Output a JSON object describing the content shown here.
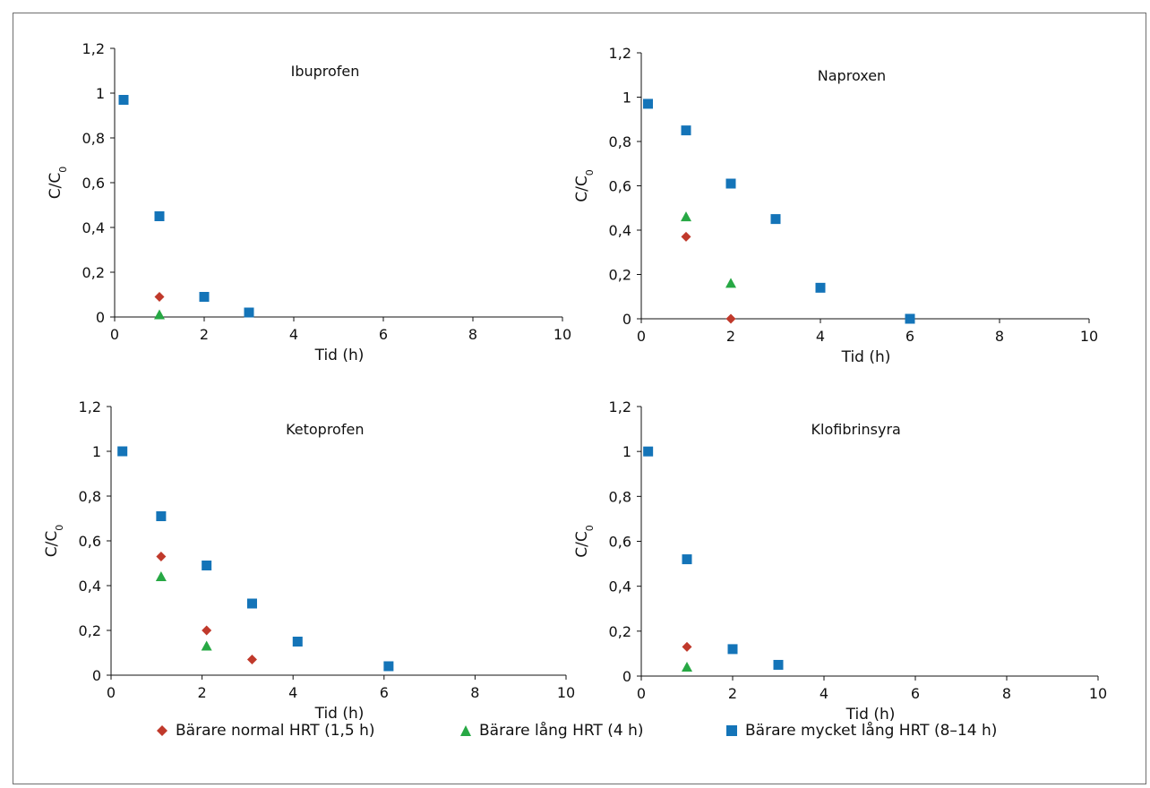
{
  "chart_data": [
    {
      "type": "scatter",
      "title": "Ibuprofen",
      "xlabel": "Tid (h)",
      "ylabel": "C/C0",
      "xlim": [
        0,
        10
      ],
      "ylim": [
        0,
        1.2
      ],
      "xticks": [
        "0",
        "2",
        "4",
        "6",
        "8",
        "10"
      ],
      "yticks": [
        "0",
        "0,2",
        "0,4",
        "0,6",
        "0,8",
        "1",
        "1,2"
      ],
      "series": [
        {
          "name": "Bärare normal HRT (1,5 h)",
          "marker": "diamond",
          "color": "#c0392b",
          "points": [
            {
              "x": 1.0,
              "y": 0.09
            }
          ]
        },
        {
          "name": "Bärare lång HRT (4 h)",
          "marker": "triangle",
          "color": "#27a844",
          "points": [
            {
              "x": 1.0,
              "y": 0.01
            }
          ]
        },
        {
          "name": "Bärare mycket  lång HRT (8–14 h)",
          "marker": "square",
          "color": "#1474b8",
          "points": [
            {
              "x": 0.2,
              "y": 0.97
            },
            {
              "x": 1.0,
              "y": 0.45
            },
            {
              "x": 2.0,
              "y": 0.09
            },
            {
              "x": 3.0,
              "y": 0.02
            }
          ]
        }
      ]
    },
    {
      "type": "scatter",
      "title": "Naproxen",
      "xlabel": "Tid (h)",
      "ylabel": "C/C0",
      "xlim": [
        0,
        10
      ],
      "ylim": [
        0,
        1.2
      ],
      "xticks": [
        "0",
        "2",
        "4",
        "6",
        "8",
        "10"
      ],
      "yticks": [
        "0",
        "0,2",
        "0,4",
        "0,6",
        "0,8",
        "1",
        "1,2"
      ],
      "series": [
        {
          "name": "Bärare normal HRT (1,5 h)",
          "marker": "diamond",
          "color": "#c0392b",
          "points": [
            {
              "x": 1.0,
              "y": 0.37
            },
            {
              "x": 2.0,
              "y": 0.0
            }
          ]
        },
        {
          "name": "Bärare lång HRT (4 h)",
          "marker": "triangle",
          "color": "#27a844",
          "points": [
            {
              "x": 1.0,
              "y": 0.46
            },
            {
              "x": 2.0,
              "y": 0.16
            }
          ]
        },
        {
          "name": "Bärare mycket  lång HRT (8–14 h)",
          "marker": "square",
          "color": "#1474b8",
          "points": [
            {
              "x": 0.15,
              "y": 0.97
            },
            {
              "x": 1.0,
              "y": 0.85
            },
            {
              "x": 2.0,
              "y": 0.61
            },
            {
              "x": 3.0,
              "y": 0.45
            },
            {
              "x": 4.0,
              "y": 0.14
            },
            {
              "x": 6.0,
              "y": 0.0
            }
          ]
        }
      ]
    },
    {
      "type": "scatter",
      "title": "Ketoprofen",
      "xlabel": "Tid (h)",
      "ylabel": "C/C0",
      "xlim": [
        0,
        10
      ],
      "ylim": [
        0,
        1.2
      ],
      "xticks": [
        "0",
        "2",
        "4",
        "6",
        "8",
        "10"
      ],
      "yticks": [
        "0",
        "0,2",
        "0,4",
        "0,6",
        "0,8",
        "1",
        "1,2"
      ],
      "series": [
        {
          "name": "Bärare normal HRT (1,5 h)",
          "marker": "diamond",
          "color": "#c0392b",
          "points": [
            {
              "x": 1.1,
              "y": 0.53
            },
            {
              "x": 2.1,
              "y": 0.2
            },
            {
              "x": 3.1,
              "y": 0.07
            }
          ]
        },
        {
          "name": "Bärare lång HRT (4 h)",
          "marker": "triangle",
          "color": "#27a844",
          "points": [
            {
              "x": 1.1,
              "y": 0.44
            },
            {
              "x": 2.1,
              "y": 0.13
            }
          ]
        },
        {
          "name": "Bärare mycket  lång HRT (8–14 h)",
          "marker": "square",
          "color": "#1474b8",
          "points": [
            {
              "x": 0.25,
              "y": 1.0
            },
            {
              "x": 1.1,
              "y": 0.71
            },
            {
              "x": 2.1,
              "y": 0.49
            },
            {
              "x": 3.1,
              "y": 0.32
            },
            {
              "x": 4.1,
              "y": 0.15
            },
            {
              "x": 6.1,
              "y": 0.04
            }
          ]
        }
      ]
    },
    {
      "type": "scatter",
      "title": "Klofibrinsyra",
      "xlabel": "Tid (h)",
      "ylabel": "C/C0",
      "xlim": [
        0,
        10
      ],
      "ylim": [
        0,
        1.2
      ],
      "xticks": [
        "0",
        "2",
        "4",
        "6",
        "8",
        "10"
      ],
      "yticks": [
        "0",
        "0,2",
        "0,4",
        "0,6",
        "0,8",
        "1",
        "1,2"
      ],
      "series": [
        {
          "name": "Bärare normal HRT (1,5 h)",
          "marker": "diamond",
          "color": "#c0392b",
          "points": [
            {
              "x": 1.0,
              "y": 0.13
            }
          ]
        },
        {
          "name": "Bärare lång HRT (4 h)",
          "marker": "triangle",
          "color": "#27a844",
          "points": [
            {
              "x": 1.0,
              "y": 0.04
            }
          ]
        },
        {
          "name": "Bärare mycket  lång HRT (8–14 h)",
          "marker": "square",
          "color": "#1474b8",
          "points": [
            {
              "x": 0.15,
              "y": 1.0
            },
            {
              "x": 1.0,
              "y": 0.52
            },
            {
              "x": 2.0,
              "y": 0.12
            },
            {
              "x": 3.0,
              "y": 0.05
            }
          ]
        }
      ]
    }
  ],
  "legend": {
    "items": [
      {
        "label": "Bärare normal HRT (1,5 h)",
        "marker": "diamond",
        "color": "#c0392b"
      },
      {
        "label": "Bärare lång HRT (4 h)",
        "marker": "triangle",
        "color": "#27a844"
      },
      {
        "label": "Bärare mycket  lång HRT (8–14 h)",
        "marker": "square",
        "color": "#1474b8"
      }
    ]
  }
}
